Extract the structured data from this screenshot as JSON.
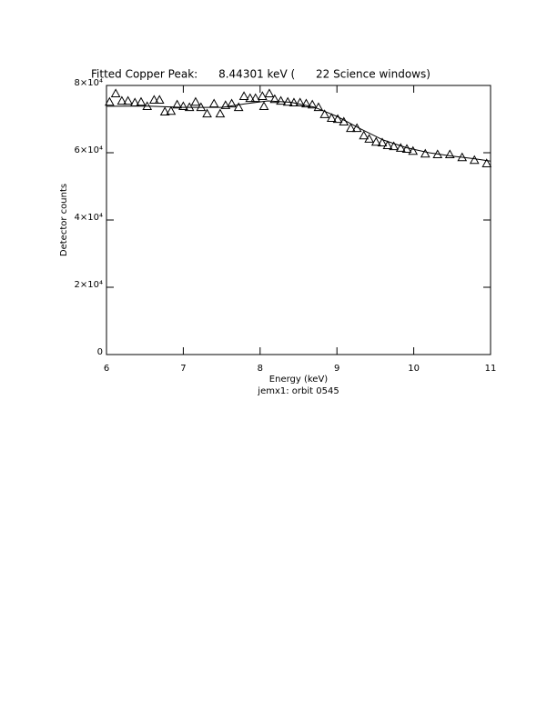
{
  "chart_data": {
    "type": "scatter",
    "title": "Fitted Copper Peak:      8.44301 keV (      22 Science windows)",
    "x_label": "Energy (keV)",
    "y_label": "Detector counts",
    "subtitle": "jemx1: orbit 0545",
    "xlim": [
      6,
      11
    ],
    "xticks": [
      6,
      7,
      8,
      9,
      10,
      11
    ],
    "ylim": [
      0,
      80000
    ],
    "yticks": [
      0,
      {
        "value": 20000,
        "label": "2×10⁴"
      },
      {
        "value": 40000,
        "label": "4×10⁴"
      },
      {
        "value": 60000,
        "label": "6×10⁴"
      },
      {
        "value": 80000,
        "label": "8×10⁴"
      }
    ],
    "color": "#000000",
    "series": [
      {
        "marker": "triangle",
        "x": [
          6.04,
          6.12,
          6.2,
          6.28,
          6.37,
          6.45,
          6.53,
          6.62,
          6.69,
          6.76,
          6.84,
          6.92,
          7.0,
          7.08,
          7.16,
          7.23,
          7.31,
          7.4,
          7.48,
          7.55,
          7.63,
          7.72,
          7.79,
          7.87,
          7.94,
          8.03,
          8.05,
          8.12,
          8.19,
          8.27,
          8.36,
          8.44,
          8.52,
          8.6,
          8.68,
          8.76,
          8.84,
          8.93,
          9.01,
          9.09,
          9.18,
          9.26,
          9.35,
          9.42,
          9.51,
          9.59,
          9.66,
          9.74,
          9.83,
          9.91,
          9.99,
          10.15,
          10.31,
          10.47,
          10.63,
          10.79,
          10.95
        ],
        "values": [
          75100,
          77600,
          75400,
          75400,
          74900,
          75100,
          73800,
          75700,
          75700,
          72200,
          72400,
          74300,
          73800,
          73500,
          75100,
          73500,
          71600,
          74600,
          71600,
          74100,
          74600,
          73500,
          76800,
          76200,
          76200,
          76800,
          73800,
          77600,
          75900,
          75400,
          75100,
          74900,
          74900,
          74600,
          74300,
          73500,
          71400,
          70300,
          70000,
          69200,
          67300,
          67300,
          65100,
          64100,
          63200,
          63000,
          62200,
          61900,
          61400,
          61100,
          60500,
          59700,
          59500,
          59500,
          58600,
          57800,
          56800
        ]
      },
      {
        "marker": "line",
        "x": [
          6,
          6.5,
          7,
          7.5,
          7.8,
          8.1,
          8.4,
          8.7,
          9,
          9.3,
          9.6,
          9.9,
          10.2,
          10.5,
          10.8,
          11
        ],
        "values": [
          73800,
          73900,
          73500,
          73500,
          74500,
          75400,
          75000,
          73600,
          70800,
          67200,
          63800,
          61500,
          60000,
          59000,
          58200,
          57500
        ]
      }
    ]
  }
}
